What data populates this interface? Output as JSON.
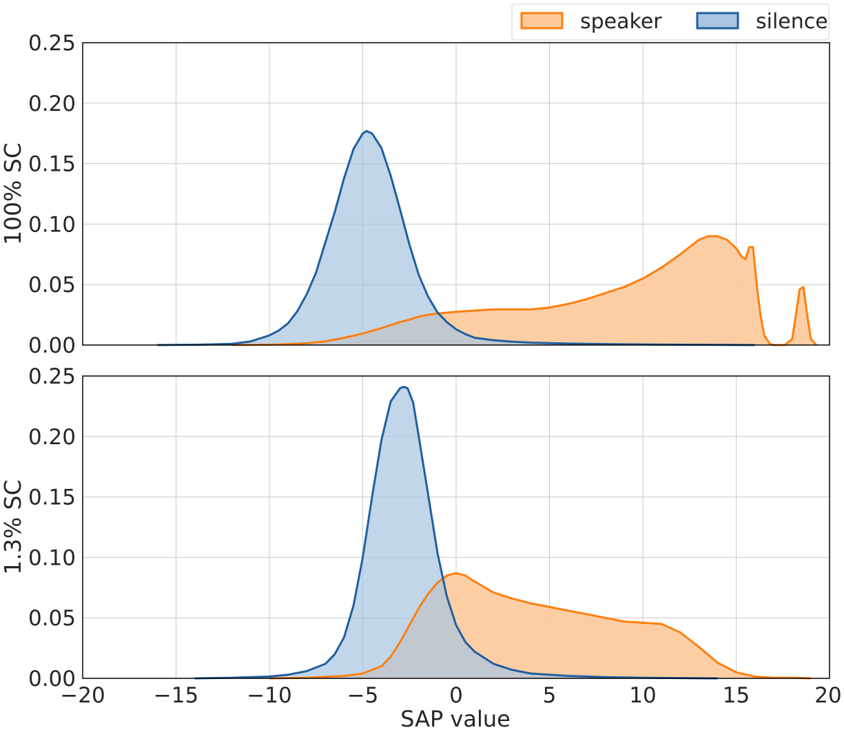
{
  "chart_data": {
    "type": "area",
    "legend": {
      "placement": "top-right",
      "entries": [
        {
          "label": "speaker",
          "color": "#ff7f0e"
        },
        {
          "label": "silence",
          "color": "#1f5f9e"
        }
      ]
    },
    "xlabel": "SAP value",
    "xlim": [
      -20,
      20
    ],
    "x_ticks": [
      -20,
      -15,
      -10,
      -5,
      0,
      5,
      10,
      15,
      20
    ],
    "x_tick_labels": [
      "−20",
      "−15",
      "−10",
      "−5",
      "0",
      "5",
      "10",
      "15",
      "20"
    ],
    "grid": true,
    "colors": {
      "speaker": "#ff7f0e",
      "silence": "#1f5f9e",
      "speaker_fill": "#fdc99a",
      "silence_fill": "#a9c6e0",
      "grid": "#c8c8c8"
    },
    "panels": [
      {
        "ylabel": "100% SC",
        "ylim": [
          0,
          0.25
        ],
        "y_ticks": [
          0,
          0.05,
          0.1,
          0.15,
          0.2,
          0.25
        ],
        "y_tick_labels": [
          "0.00",
          "0.05",
          "0.10",
          "0.15",
          "0.20",
          "0.25"
        ],
        "series": [
          {
            "name": "speaker",
            "x": [
              -12,
              -10,
              -9,
              -8,
              -7,
              -6,
              -5,
              -4,
              -3,
              -2.5,
              -2,
              -1.5,
              -1,
              0,
              1,
              2,
              3,
              4,
              5,
              6,
              7,
              8,
              9,
              10,
              11,
              12,
              13,
              13.5,
              14,
              14.5,
              15,
              15.3,
              15.5,
              15.7,
              15.9,
              16.1,
              16.3,
              16.5,
              16.8,
              17,
              17.3,
              17.6,
              18,
              18.2,
              18.4,
              18.6,
              18.8,
              19,
              19.3
            ],
            "y": [
              0.0,
              0.0003,
              0.0008,
              0.0015,
              0.003,
              0.006,
              0.0095,
              0.014,
              0.019,
              0.021,
              0.0235,
              0.025,
              0.026,
              0.0275,
              0.0285,
              0.0295,
              0.0295,
              0.0295,
              0.031,
              0.034,
              0.038,
              0.043,
              0.048,
              0.055,
              0.064,
              0.075,
              0.087,
              0.09,
              0.09,
              0.087,
              0.08,
              0.073,
              0.071,
              0.081,
              0.081,
              0.05,
              0.025,
              0.008,
              0.001,
              0.0,
              0.0,
              0.0,
              0.005,
              0.025,
              0.046,
              0.048,
              0.025,
              0.005,
              0.0
            ]
          },
          {
            "name": "silence",
            "x": [
              -16,
              -14,
              -12,
              -11,
              -10,
              -9.5,
              -9,
              -8.5,
              -8,
              -7.5,
              -7,
              -6.5,
              -6,
              -5.5,
              -5,
              -4.8,
              -4.5,
              -4,
              -3.5,
              -3,
              -2.5,
              -2,
              -1.5,
              -1,
              -0.5,
              0,
              0.5,
              1,
              2,
              3,
              4,
              6,
              8,
              10,
              12,
              14,
              16
            ],
            "y": [
              0.0,
              0.0002,
              0.001,
              0.003,
              0.008,
              0.012,
              0.018,
              0.028,
              0.042,
              0.06,
              0.085,
              0.11,
              0.138,
              0.162,
              0.175,
              0.177,
              0.175,
              0.163,
              0.14,
              0.112,
              0.083,
              0.058,
              0.04,
              0.027,
              0.019,
              0.013,
              0.009,
              0.006,
              0.004,
              0.0028,
              0.002,
              0.0012,
              0.0008,
              0.0005,
              0.0003,
              0.0001,
              0.0
            ]
          }
        ]
      },
      {
        "ylabel": "1.3% SC",
        "ylim": [
          0,
          0.25
        ],
        "y_ticks": [
          0,
          0.05,
          0.1,
          0.15,
          0.2,
          0.25
        ],
        "y_tick_labels": [
          "0.00",
          "0.05",
          "0.10",
          "0.15",
          "0.20",
          "0.25"
        ],
        "series": [
          {
            "name": "speaker",
            "x": [
              -10,
              -8,
              -6,
              -5,
              -4,
              -3.5,
              -3,
              -2.5,
              -2,
              -1.5,
              -1,
              -0.5,
              0,
              0.5,
              1,
              2,
              3,
              4,
              5,
              6,
              7,
              8,
              9,
              10,
              11,
              12,
              13,
              14,
              15,
              16,
              17,
              18,
              19
            ],
            "y": [
              0.0,
              0.0005,
              0.002,
              0.004,
              0.01,
              0.018,
              0.03,
              0.044,
              0.058,
              0.07,
              0.079,
              0.085,
              0.087,
              0.085,
              0.08,
              0.071,
              0.066,
              0.062,
              0.059,
              0.056,
              0.053,
              0.05,
              0.047,
              0.046,
              0.045,
              0.038,
              0.026,
              0.013,
              0.005,
              0.0015,
              0.0005,
              0.0005,
              0.0
            ]
          },
          {
            "name": "silence",
            "x": [
              -14,
              -12,
              -10,
              -9,
              -8,
              -7,
              -6.5,
              -6,
              -5.5,
              -5,
              -4.5,
              -4,
              -3.5,
              -3,
              -2.8,
              -2.6,
              -2.3,
              -2,
              -1.5,
              -1,
              -0.5,
              0,
              0.5,
              1,
              2,
              3,
              4,
              6,
              8,
              10,
              12,
              14
            ],
            "y": [
              0.0,
              0.0005,
              0.0015,
              0.003,
              0.006,
              0.012,
              0.02,
              0.034,
              0.06,
              0.1,
              0.15,
              0.197,
              0.229,
              0.24,
              0.241,
              0.24,
              0.228,
              0.2,
              0.152,
              0.104,
              0.068,
              0.044,
              0.03,
              0.022,
              0.012,
              0.007,
              0.004,
              0.002,
              0.001,
              0.0005,
              0.0002,
              0.0
            ]
          }
        ]
      }
    ]
  }
}
